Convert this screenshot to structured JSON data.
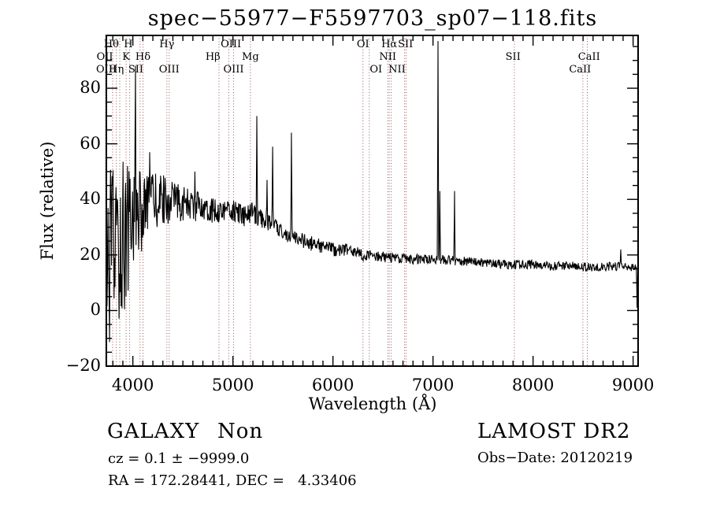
{
  "title": "spec−55977−F5597703_sp07−118.fits",
  "annotations": {
    "class_label": "GALAXY",
    "subclass_label": "Non",
    "cz_line": "cz = 0.1 ± −9999.0",
    "radec_line": "RA = 172.28441, DEC =   4.33406",
    "survey": "LAMOST DR2",
    "obs_date": "Obs−Date: 20120219"
  },
  "chart_data": {
    "type": "line",
    "title": "spec−55977−F5597703_sp07−118.fits",
    "xlabel": "Wavelength (Å)",
    "ylabel": "Flux (relative)",
    "xlim": [
      3735,
      9050
    ],
    "ylim": [
      -20,
      99
    ],
    "xticks": [
      4000,
      5000,
      6000,
      7000,
      8000,
      9000
    ],
    "yticks": [
      -20,
      0,
      20,
      40,
      60,
      80
    ],
    "x_minor_step": 100,
    "y_minor_step": 5,
    "grid": false,
    "legend": "none",
    "line_color": "#000000",
    "marker_color": "#965353",
    "seed": 12345,
    "continuum": [
      [
        3735,
        14
      ],
      [
        3800,
        20
      ],
      [
        3850,
        22
      ],
      [
        3900,
        28
      ],
      [
        3950,
        30
      ],
      [
        4000,
        34
      ],
      [
        4100,
        36
      ],
      [
        4200,
        39
      ],
      [
        4300,
        40
      ],
      [
        4400,
        39
      ],
      [
        4500,
        39
      ],
      [
        4600,
        37
      ],
      [
        4700,
        38
      ],
      [
        4800,
        36
      ],
      [
        4900,
        36
      ],
      [
        5000,
        36
      ],
      [
        5100,
        34
      ],
      [
        5200,
        35
      ],
      [
        5300,
        33
      ],
      [
        5400,
        31
      ],
      [
        5500,
        28
      ],
      [
        5600,
        27
      ],
      [
        5700,
        25
      ],
      [
        5800,
        24
      ],
      [
        5900,
        23
      ],
      [
        6000,
        22
      ],
      [
        6100,
        22
      ],
      [
        6200,
        21
      ],
      [
        6300,
        20
      ],
      [
        6450,
        19.5
      ],
      [
        6600,
        19
      ],
      [
        6800,
        18.5
      ],
      [
        7000,
        18.5
      ],
      [
        7200,
        18
      ],
      [
        7400,
        17.5
      ],
      [
        7600,
        17
      ],
      [
        7800,
        16.5
      ],
      [
        8000,
        16.5
      ],
      [
        8200,
        16
      ],
      [
        8400,
        16
      ],
      [
        8600,
        15.5
      ],
      [
        8800,
        16
      ],
      [
        8950,
        15.5
      ],
      [
        9048,
        15
      ]
    ],
    "noise_profile": [
      [
        3735,
        34
      ],
      [
        3900,
        30
      ],
      [
        3960,
        24
      ],
      [
        4050,
        16
      ],
      [
        4170,
        11
      ],
      [
        4365,
        8
      ],
      [
        4560,
        6
      ],
      [
        4800,
        4.5
      ],
      [
        5115,
        4
      ],
      [
        5430,
        3
      ],
      [
        5665,
        2.8
      ],
      [
        5980,
        2.5
      ],
      [
        6295,
        2.2
      ],
      [
        6767,
        1.8
      ],
      [
        7396,
        1.6
      ],
      [
        8183,
        1.7
      ],
      [
        9048,
        1.5
      ]
    ],
    "peaks": [
      [
        4026,
        88
      ],
      [
        4168,
        57
      ],
      [
        4620,
        50
      ],
      [
        5239,
        70
      ],
      [
        5341,
        47
      ],
      [
        5397,
        59
      ],
      [
        5585,
        64
      ],
      [
        7050,
        97
      ],
      [
        7068,
        43
      ],
      [
        7215,
        43
      ],
      [
        8877,
        22
      ],
      [
        9040,
        1
      ]
    ],
    "marker_lines": [
      3727,
      3798,
      3835,
      3869,
      3933,
      3968,
      4072,
      4101,
      4340,
      4363,
      4861,
      4959,
      5007,
      5175,
      6300,
      6363,
      6548,
      6563,
      6583,
      6716,
      6731,
      7813,
      8498,
      8542
    ],
    "line_labels": [
      {
        "wl": 3785,
        "text": "Hθ",
        "row": 1
      },
      {
        "wl": 3955,
        "text": "H",
        "row": 1
      },
      {
        "wl": 4340,
        "text": "Hγ",
        "row": 1
      },
      {
        "wl": 4980,
        "text": "OIII",
        "row": 1
      },
      {
        "wl": 6300,
        "text": "OI",
        "row": 1
      },
      {
        "wl": 6563,
        "text": "Hα",
        "row": 1
      },
      {
        "wl": 6725,
        "text": "SII",
        "row": 1
      },
      {
        "wl": 3720,
        "text": "OII",
        "row": 2
      },
      {
        "wl": 3933,
        "text": "K",
        "row": 2
      },
      {
        "wl": 4101,
        "text": "Hδ",
        "row": 2
      },
      {
        "wl": 4800,
        "text": "Hβ",
        "row": 2
      },
      {
        "wl": 5175,
        "text": "Mg",
        "row": 2
      },
      {
        "wl": 6548,
        "text": "NII",
        "row": 2
      },
      {
        "wl": 7800,
        "text": "SII",
        "row": 2
      },
      {
        "wl": 8560,
        "text": "CaII",
        "row": 2
      },
      {
        "wl": 3735,
        "text": "OIII",
        "row": 3
      },
      {
        "wl": 3835,
        "text": "Hη",
        "row": 3
      },
      {
        "wl": 4030,
        "text": "SII",
        "row": 3
      },
      {
        "wl": 4363,
        "text": "OIII",
        "row": 3
      },
      {
        "wl": 5007,
        "text": "OIII",
        "row": 3
      },
      {
        "wl": 6430,
        "text": "OI",
        "row": 3
      },
      {
        "wl": 6640,
        "text": "NII",
        "row": 3
      },
      {
        "wl": 8470,
        "text": "CaII",
        "row": 3
      }
    ]
  }
}
